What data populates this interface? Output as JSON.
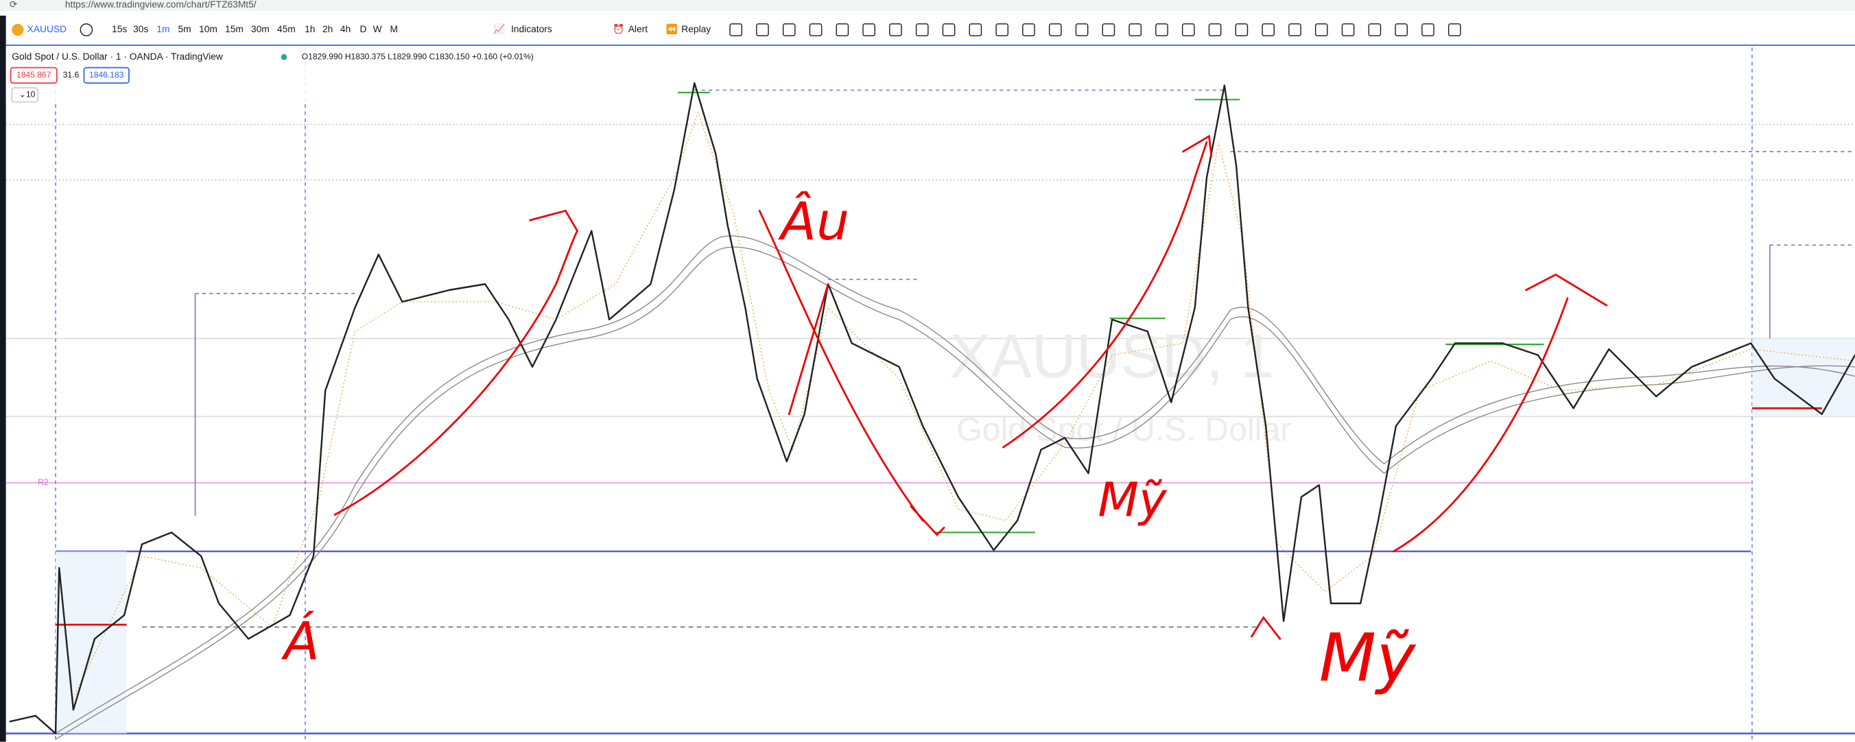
{
  "browser": {
    "url": "https://www.tradingview.com/chart/FTZ63Mt5/"
  },
  "toolbar": {
    "symbol": "XAUUSD",
    "intervals": [
      "15s",
      "30s",
      "1m",
      "5m",
      "10m",
      "15m",
      "30m",
      "45m",
      "1h",
      "2h",
      "4h",
      "D",
      "W",
      "M"
    ],
    "indicators": "Indicators",
    "alert": "Alert",
    "replay": "Replay"
  },
  "legend": {
    "title": "Gold Spot / U.S. Dollar · 1 · OANDA · TradingView",
    "ohlc": "O1829.990 H1830.375 L1829.990 C1830.150 +0.160 (+0.01%)",
    "sell": "1845.867",
    "spread": "31.6",
    "buy": "1846.183",
    "indicator_count": "10"
  },
  "chart": {
    "watermark_symbol": "XAUUSD, 1",
    "watermark_name": "Gold Spot / U.S. Dollar",
    "level_label": "R2"
  },
  "annotations": [
    "Âu",
    "Á",
    "Mỹ",
    "Mỹ"
  ]
}
